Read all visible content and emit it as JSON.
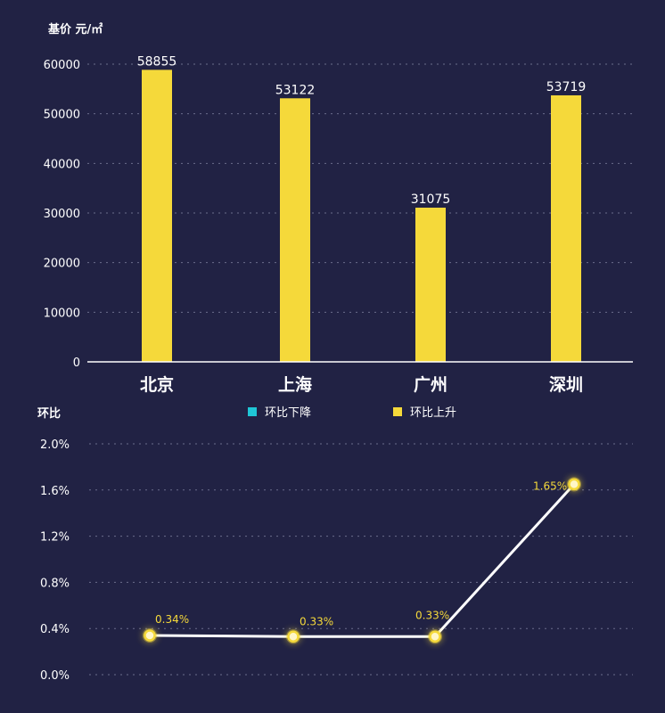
{
  "chart_data": [
    {
      "type": "bar",
      "ylabel": "基价  元/㎡",
      "categories": [
        "北京",
        "上海",
        "广州",
        "深圳"
      ],
      "values": [
        58855,
        53122,
        31075,
        53719
      ],
      "ylim": [
        0,
        60000
      ],
      "yticks": [
        "0",
        "10000",
        "20000",
        "30000",
        "40000",
        "50000",
        "60000"
      ],
      "grid": true,
      "colors": {
        "bar": "#f5d93a",
        "background": "#212244",
        "grid": "#6b6d8c"
      }
    },
    {
      "type": "line",
      "ylabel": "环比",
      "categories": [
        "北京",
        "上海",
        "广州",
        "深圳"
      ],
      "values": [
        0.34,
        0.33,
        0.33,
        1.65
      ],
      "point_labels": [
        "0.34%",
        "0.33%",
        "0.33%",
        "1.65%"
      ],
      "ylim": [
        0,
        2.0
      ],
      "yticks": [
        "0.0%",
        "0.4%",
        "0.8%",
        "1.2%",
        "1.6%",
        "2.0%"
      ],
      "grid": true,
      "legend": {
        "placement": "top-center",
        "items": [
          {
            "label": "环比下降",
            "color": "#1fc6d6"
          },
          {
            "label": "环比上升",
            "color": "#f5d93a"
          }
        ]
      },
      "colors": {
        "line": "#ffffff",
        "marker": "#f5d93a",
        "label": "#f5d93a"
      }
    }
  ]
}
